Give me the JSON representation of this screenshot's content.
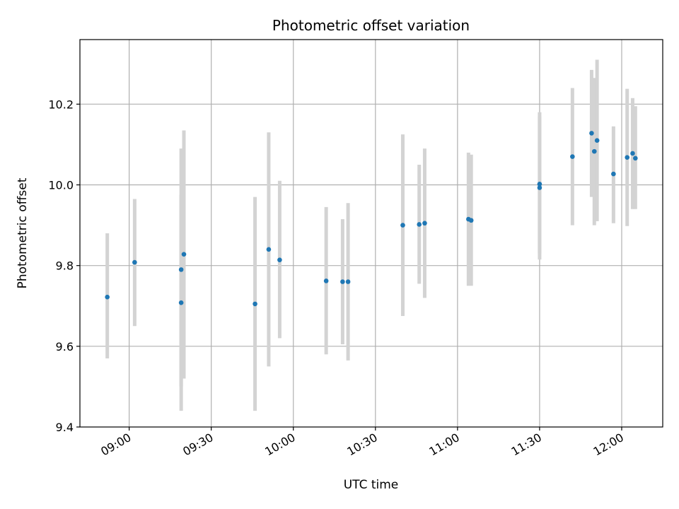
{
  "chart_data": {
    "type": "scatter",
    "title": "Photometric offset variation",
    "xlabel": "UTC time",
    "ylabel": "Photometric offset",
    "x_is_time": true,
    "xlim": [
      "08:42",
      "12:15"
    ],
    "ylim": [
      9.4,
      10.36
    ],
    "x_ticks": [
      "09:00",
      "09:30",
      "10:00",
      "10:30",
      "11:00",
      "11:30",
      "12:00"
    ],
    "y_ticks": [
      9.4,
      9.6,
      9.8,
      10.0,
      10.2
    ],
    "grid": true,
    "marker_color": "#1f77b4",
    "errorbar_color": "#d3d3d3",
    "points": [
      {
        "t": "08:52",
        "y": 9.722,
        "lo": 9.57,
        "hi": 9.88
      },
      {
        "t": "09:02",
        "y": 9.808,
        "lo": 9.65,
        "hi": 9.965
      },
      {
        "t": "09:19",
        "y": 9.708,
        "lo": 9.44,
        "hi": 9.975
      },
      {
        "t": "09:19",
        "y": 9.79,
        "lo": 9.5,
        "hi": 10.09
      },
      {
        "t": "09:20",
        "y": 9.828,
        "lo": 9.52,
        "hi": 10.135
      },
      {
        "t": "09:46",
        "y": 9.705,
        "lo": 9.44,
        "hi": 9.97
      },
      {
        "t": "09:51",
        "y": 9.84,
        "lo": 9.55,
        "hi": 10.13
      },
      {
        "t": "09:55",
        "y": 9.814,
        "lo": 9.62,
        "hi": 10.01
      },
      {
        "t": "10:12",
        "y": 9.762,
        "lo": 9.58,
        "hi": 9.945
      },
      {
        "t": "10:18",
        "y": 9.76,
        "lo": 9.605,
        "hi": 9.915
      },
      {
        "t": "10:20",
        "y": 9.76,
        "lo": 9.565,
        "hi": 9.955
      },
      {
        "t": "10:40",
        "y": 9.9,
        "lo": 9.675,
        "hi": 10.125
      },
      {
        "t": "10:46",
        "y": 9.902,
        "lo": 9.755,
        "hi": 10.05
      },
      {
        "t": "10:48",
        "y": 9.905,
        "lo": 9.72,
        "hi": 10.09
      },
      {
        "t": "11:04",
        "y": 9.915,
        "lo": 9.75,
        "hi": 10.08
      },
      {
        "t": "11:05",
        "y": 9.912,
        "lo": 9.75,
        "hi": 10.075
      },
      {
        "t": "11:30",
        "y": 9.993,
        "lo": 9.815,
        "hi": 10.17
      },
      {
        "t": "11:30",
        "y": 10.002,
        "lo": 9.83,
        "hi": 10.18
      },
      {
        "t": "11:42",
        "y": 10.07,
        "lo": 9.9,
        "hi": 10.24
      },
      {
        "t": "11:49",
        "y": 10.128,
        "lo": 9.97,
        "hi": 10.285
      },
      {
        "t": "11:50",
        "y": 10.083,
        "lo": 9.9,
        "hi": 10.265
      },
      {
        "t": "11:51",
        "y": 10.11,
        "lo": 9.91,
        "hi": 10.31
      },
      {
        "t": "11:57",
        "y": 10.027,
        "lo": 9.905,
        "hi": 10.145
      },
      {
        "t": "12:02",
        "y": 10.068,
        "lo": 9.898,
        "hi": 10.238
      },
      {
        "t": "12:04",
        "y": 10.078,
        "lo": 9.94,
        "hi": 10.215
      },
      {
        "t": "12:05",
        "y": 10.066,
        "lo": 9.94,
        "hi": 10.195
      }
    ]
  }
}
